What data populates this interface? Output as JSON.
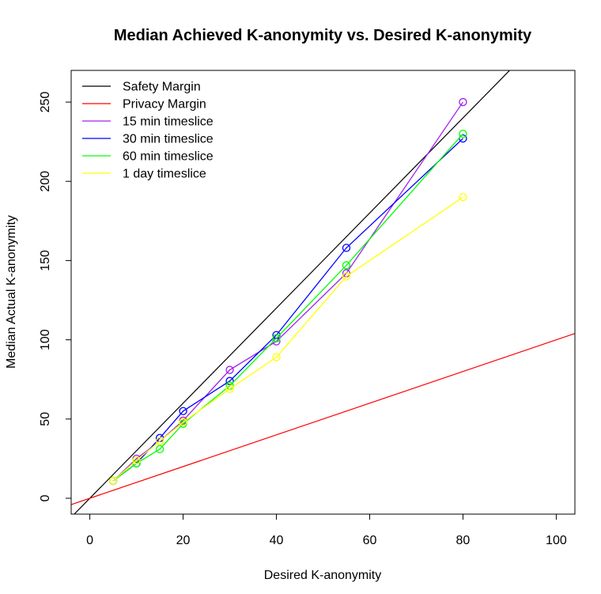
{
  "chart_data": {
    "type": "line",
    "title": "Median Achieved K-anonymity vs. Desired K-anonymity",
    "xlabel": "Desired K-anonymity",
    "ylabel": "Median Actual K-anonymity",
    "xlim": [
      -4,
      104
    ],
    "ylim": [
      -10,
      270
    ],
    "x_ticks": [
      0,
      20,
      40,
      60,
      80,
      100
    ],
    "y_ticks": [
      0,
      50,
      100,
      150,
      200,
      250
    ],
    "grid": false,
    "legend_position": "top-left",
    "reference_lines": [
      {
        "name": "Safety Margin",
        "color": "#000000",
        "slope": 3,
        "intercept": 0
      },
      {
        "name": "Privacy Margin",
        "color": "#ff0000",
        "slope": 1,
        "intercept": 0
      }
    ],
    "x": [
      5,
      10,
      15,
      20,
      30,
      40,
      55,
      80
    ],
    "series": [
      {
        "name": "15 min timeslice",
        "color": "#a020f0",
        "values": [
          11,
          25,
          36,
          49,
          81,
          99,
          142,
          250
        ]
      },
      {
        "name": "30 min timeslice",
        "color": "#0000ff",
        "values": [
          11,
          22,
          38,
          55,
          74,
          103,
          158,
          227
        ]
      },
      {
        "name": "60 min timeslice",
        "color": "#00ff00",
        "values": [
          11,
          22,
          31,
          47,
          71,
          101,
          147,
          230
        ]
      },
      {
        "name": "1 day timeslice",
        "color": "#ffff00",
        "values": [
          11,
          24,
          36,
          48,
          69,
          89,
          140,
          190
        ]
      }
    ]
  }
}
